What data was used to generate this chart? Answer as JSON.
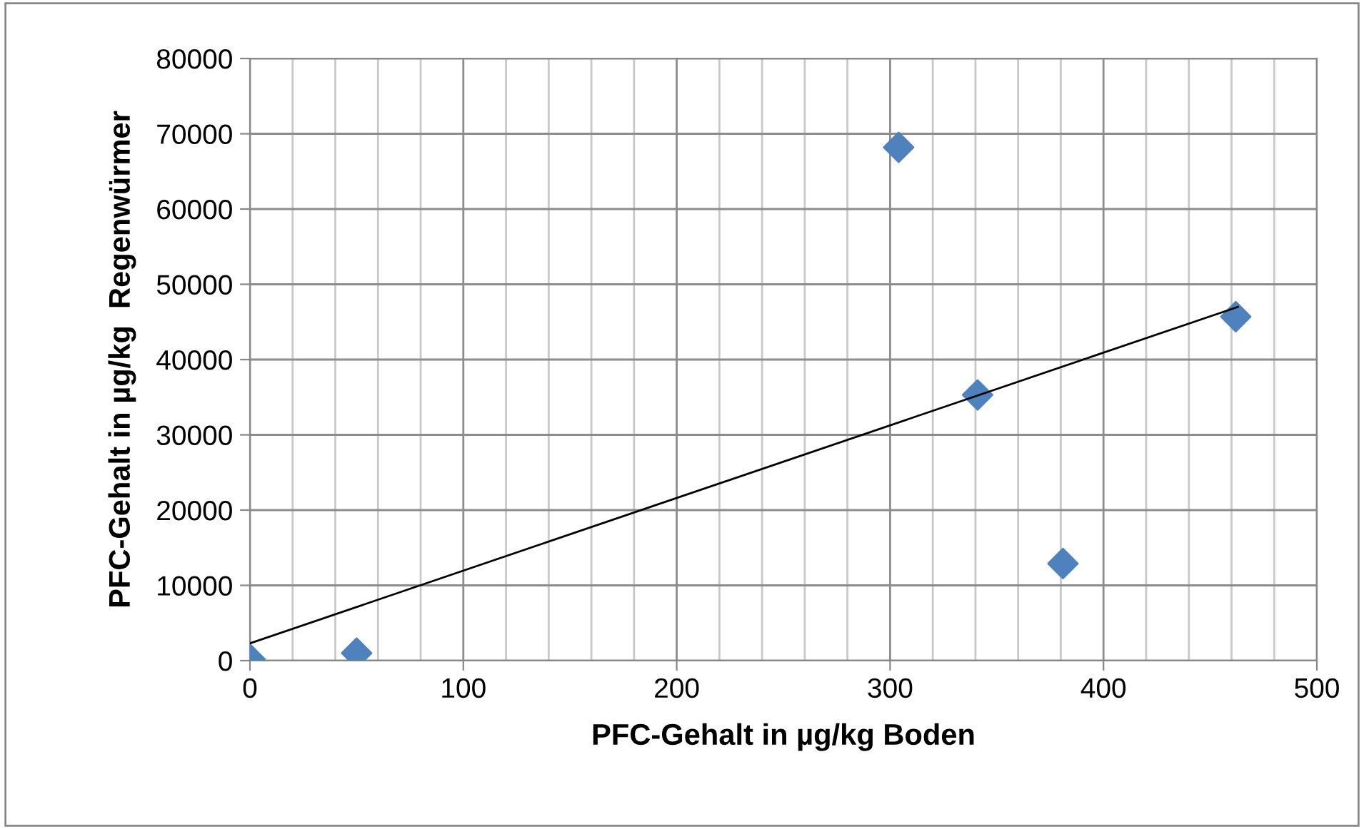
{
  "chart_data": {
    "type": "scatter",
    "xlabel": "PFC-Gehalt in µg/kg Boden",
    "ylabel": "PFC-Gehalt in µg/kg  Regenwürmer",
    "series": [
      {
        "color": "#4f81bd",
        "marker": "diamond",
        "x": [
          0,
          50,
          304,
          341,
          381,
          462
        ],
        "values": [
          200,
          1000,
          68200,
          35300,
          12900,
          45700
        ]
      },
      {
        "type": "line",
        "color": "#000000",
        "marker": "none",
        "line_style": "solid",
        "x": [
          0,
          463
        ],
        "values": [
          2300,
          47000
        ]
      }
    ],
    "xlim": [
      0,
      500
    ],
    "xticks": [
      0,
      {
        "value": 20,
        "label": null
      },
      {
        "value": 40,
        "label": null
      },
      {
        "value": 60,
        "label": null
      },
      {
        "value": 80,
        "label": null
      },
      100,
      {
        "value": 120,
        "label": null
      },
      {
        "value": 140,
        "label": null
      },
      {
        "value": 160,
        "label": null
      },
      {
        "value": 180,
        "label": null
      },
      200,
      {
        "value": 220,
        "label": null
      },
      {
        "value": 240,
        "label": null
      },
      {
        "value": 260,
        "label": null
      },
      {
        "value": 280,
        "label": null
      },
      300,
      {
        "value": 320,
        "label": null
      },
      {
        "value": 340,
        "label": null
      },
      {
        "value": 360,
        "label": null
      },
      {
        "value": 380,
        "label": null
      },
      400,
      {
        "value": 420,
        "label": null
      },
      {
        "value": 440,
        "label": null
      },
      {
        "value": 460,
        "label": null
      },
      {
        "value": 480,
        "label": null
      },
      500
    ],
    "ylim": [
      0,
      80000
    ],
    "yticks": [
      0,
      10000,
      20000,
      30000,
      40000,
      50000,
      60000,
      70000,
      80000
    ],
    "grid": true,
    "legend": false
  }
}
